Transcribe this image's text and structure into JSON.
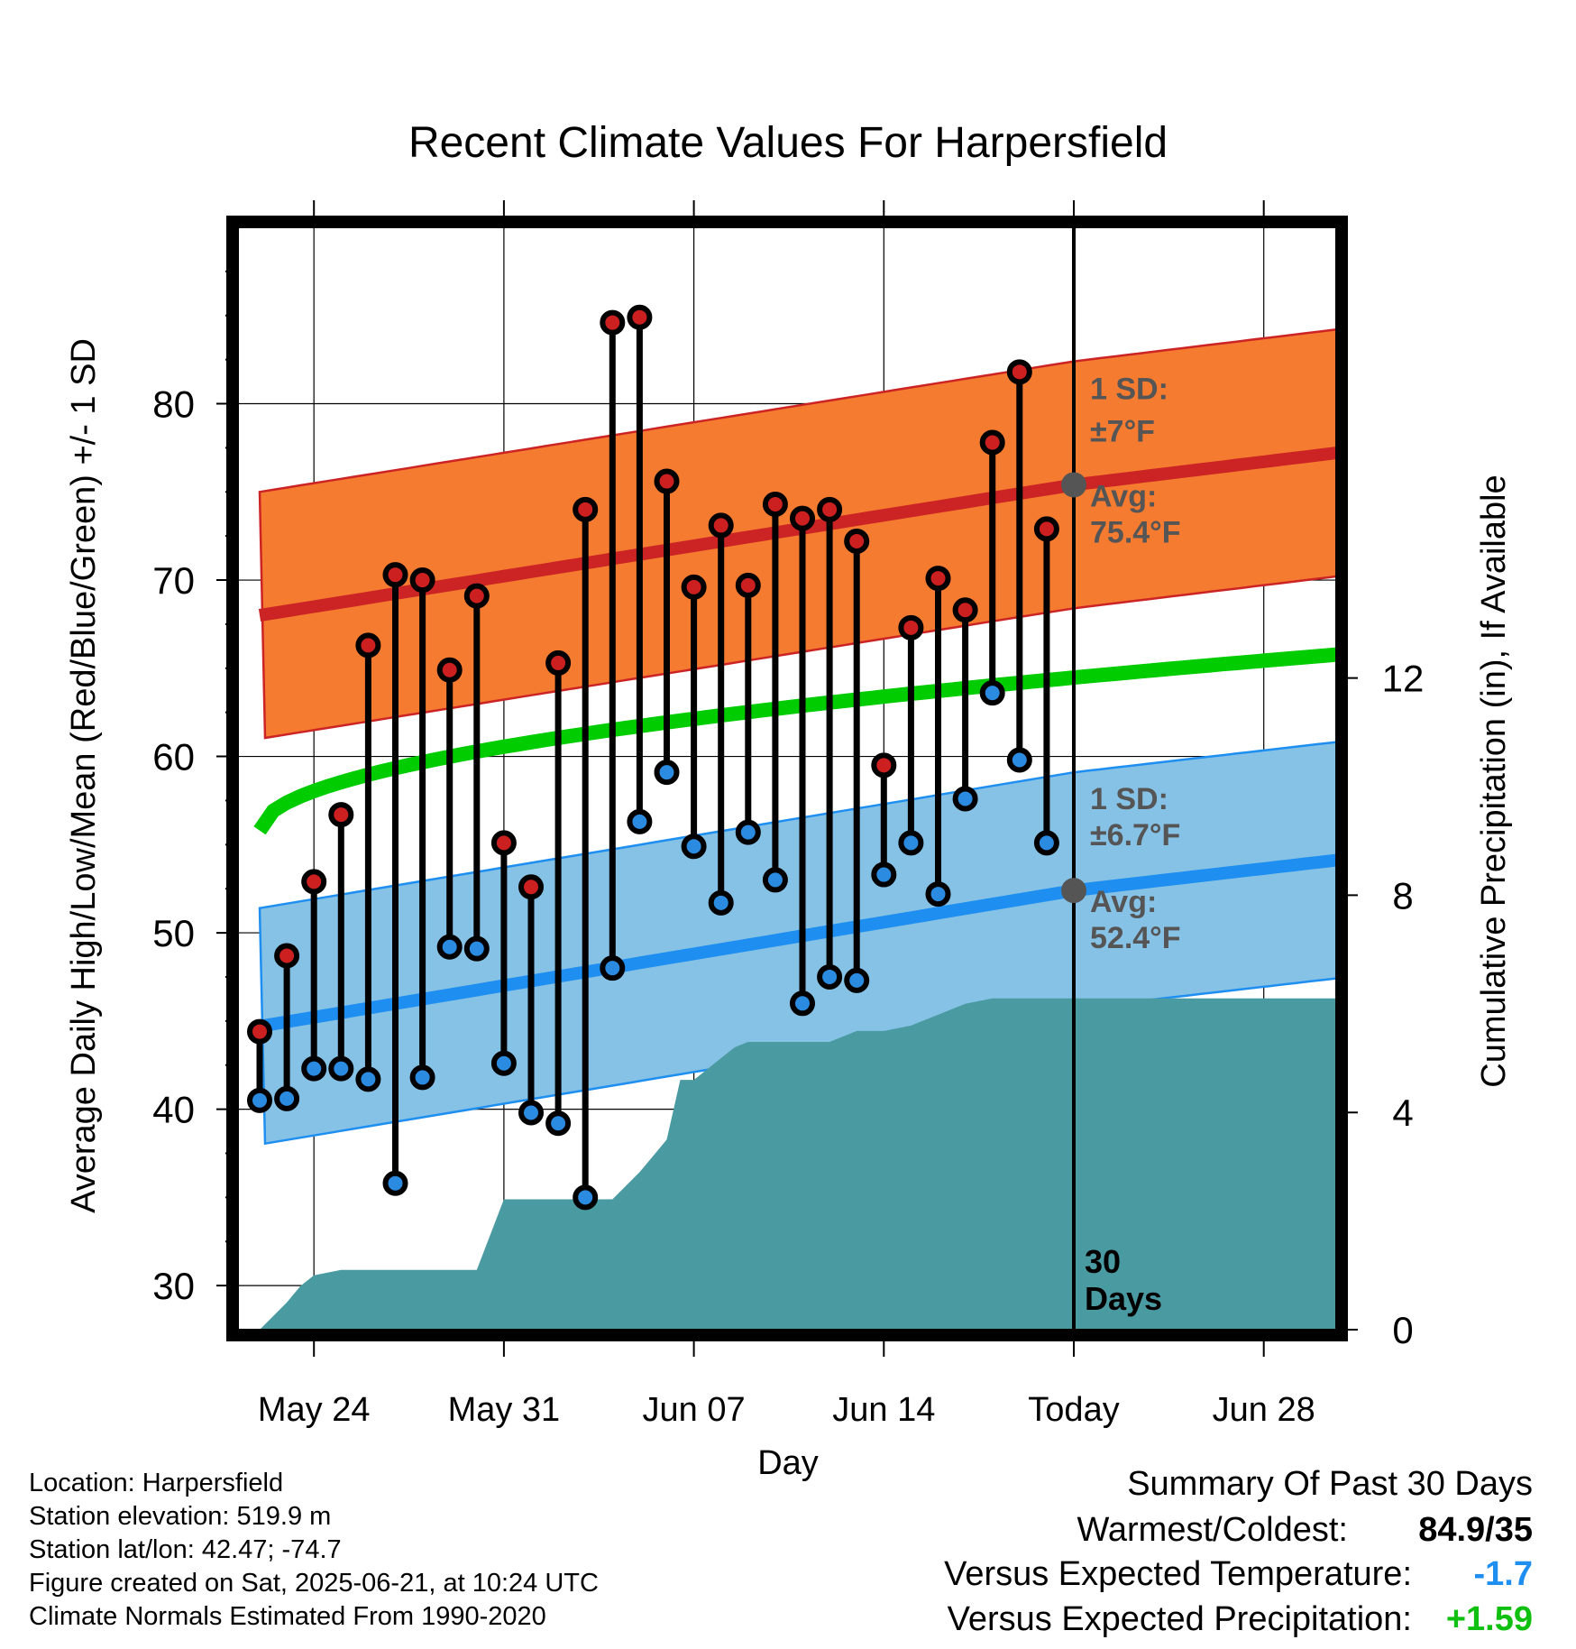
{
  "chart_data": {
    "type": "line",
    "title": "Recent Climate Values For Harpersfield",
    "xlabel": "Day",
    "ylabel": "Average Daily High/Low/Mean (Red/Blue/Green) +/- 1 SD",
    "y2label": "Cumulative Precipitation (in), If Available",
    "ylim": [
      27.5,
      90
    ],
    "y2lim": [
      0,
      20.3
    ],
    "x_ticks": [
      "May 24",
      "May 31",
      "Jun 07",
      "Jun 14",
      "Today",
      "Jun 28"
    ],
    "y_ticks": [
      30,
      40,
      50,
      60,
      70,
      80
    ],
    "y2_ticks": [
      0,
      4,
      8,
      12
    ],
    "grid": true,
    "today_marker": "30\nDays",
    "days": [
      "May 22",
      "May 23",
      "May 24",
      "May 25",
      "May 26",
      "May 27",
      "May 28",
      "May 29",
      "May 30",
      "May 31",
      "Jun 01",
      "Jun 02",
      "Jun 03",
      "Jun 04",
      "Jun 05",
      "Jun 06",
      "Jun 07",
      "Jun 08",
      "Jun 09",
      "Jun 10",
      "Jun 11",
      "Jun 12",
      "Jun 13",
      "Jun 14",
      "Jun 15",
      "Jun 16",
      "Jun 17",
      "Jun 18",
      "Jun 19",
      "Jun 20"
    ],
    "daily_high": [
      44.4,
      48.7,
      52.9,
      56.7,
      66.3,
      70.3,
      70.0,
      64.9,
      69.1,
      55.1,
      52.6,
      65.3,
      74.0,
      84.6,
      84.9,
      75.6,
      69.6,
      73.1,
      69.7,
      74.3,
      73.5,
      74.0,
      72.2,
      59.5,
      67.3,
      70.1,
      68.3,
      77.8,
      81.8,
      72.9
    ],
    "daily_low": [
      40.5,
      40.6,
      42.3,
      42.3,
      41.7,
      35.8,
      41.8,
      49.2,
      49.1,
      42.6,
      39.8,
      39.2,
      35.0,
      48.0,
      56.3,
      59.1,
      54.9,
      51.7,
      55.7,
      53.0,
      46.0,
      47.5,
      47.3,
      53.3,
      55.1,
      52.2,
      57.6,
      63.6,
      59.8,
      55.1
    ],
    "normal_high": {
      "start": 68.0,
      "today": 75.4,
      "end": 77.4,
      "sd": 7
    },
    "normal_low": {
      "start": 44.7,
      "today": 52.4,
      "end": 54.3,
      "sd": 6.7
    },
    "normal_mean": {
      "start": 55.8,
      "end": 65.9
    },
    "cumulative_precip": {
      "days": [
        0,
        1,
        1.5,
        2,
        3,
        4,
        5,
        6,
        7,
        8,
        9,
        9.5,
        10,
        12,
        13,
        14,
        14.5,
        15,
        15.5,
        16,
        17,
        17.5,
        18,
        19,
        20,
        21,
        22,
        23,
        24,
        25,
        26,
        27,
        28,
        29,
        30,
        41
      ],
      "values": [
        0,
        0.5,
        0.8,
        1.0,
        1.1,
        1.1,
        1.1,
        1.1,
        1.1,
        1.1,
        2.4,
        2.4,
        2.4,
        2.4,
        2.4,
        2.9,
        3.2,
        3.5,
        4.6,
        4.6,
        5.0,
        5.2,
        5.3,
        5.3,
        5.3,
        5.3,
        5.5,
        5.5,
        5.6,
        5.8,
        6.0,
        6.1,
        6.1,
        6.1,
        6.1,
        6.1
      ]
    },
    "annotations": {
      "high_sd": "1 SD:",
      "high_sd_value": "±7°F",
      "high_avg": "Avg:",
      "high_avg_value": "75.4°F",
      "low_sd": "1 SD:",
      "low_sd_value": "±6.7°F",
      "low_avg": "Avg:",
      "low_avg_value": "52.4°F"
    },
    "colors": {
      "high_band": "#f47b30",
      "high_line": "#cc2424",
      "low_band": "#86c2e6",
      "low_line": "#1e8ff0",
      "mean_line": "#00cc00",
      "precip": "#4a9aa2",
      "high_dot": "#cc2020",
      "low_dot": "#2a8be0",
      "annotation": "#555555"
    }
  },
  "station_info": [
    "Location: Harpersfield",
    "Station elevation: 519.9 m",
    "Station lat/lon: 42.47; -74.7",
    "Figure created on Sat, 2025-06-21, at 10:24 UTC",
    "Climate Normals Estimated From 1990-2020"
  ],
  "summary": {
    "title": "Summary Of Past 30 Days",
    "warm_cold_label": "Warmest/Coldest:",
    "warm_cold_value": "84.9/35",
    "temp_label": "Versus Expected Temperature:",
    "temp_value": "-1.7",
    "temp_color": "#1e8ff0",
    "precip_label": "Versus Expected Precipitation:",
    "precip_value": "+1.59",
    "precip_color": "#10c010"
  }
}
